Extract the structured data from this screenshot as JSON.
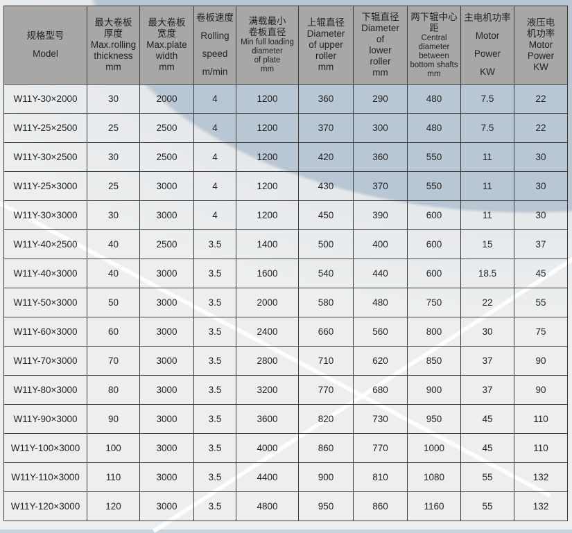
{
  "table": {
    "headers": [
      [
        "规格型号",
        "Model"
      ],
      [
        "最大卷板",
        "厚度",
        "Max.rolling",
        "thickness",
        "mm"
      ],
      [
        "最大卷板",
        "宽度",
        "Max.plate",
        "width",
        "mm"
      ],
      [
        "卷板速度",
        "Rolling",
        "speed",
        "m/min"
      ],
      [
        "满载最小",
        "卷板直径",
        "Min full loading",
        "diameter",
        "of plate",
        "mm"
      ],
      [
        "上辊直径",
        "Diameter",
        "of upper",
        "roller",
        "mm"
      ],
      [
        "下辊直径",
        "Diameter",
        "of",
        "lower",
        "roller",
        "mm"
      ],
      [
        "两下辊中心距",
        "Central",
        "diameter",
        "between",
        "bottom shafts",
        "mm"
      ],
      [
        "主电机功率",
        "Motor",
        "Power",
        "KW"
      ],
      [
        "液压电",
        "机功率",
        "Motor",
        "Power",
        "KW"
      ]
    ],
    "rows": [
      [
        "W11Y-30×2000",
        "30",
        "2000",
        "4",
        "1200",
        "360",
        "290",
        "480",
        "7.5",
        "22"
      ],
      [
        "W11Y-25×2500",
        "25",
        "2500",
        "4",
        "1200",
        "370",
        "300",
        "480",
        "7.5",
        "22"
      ],
      [
        "W11Y-30×2500",
        "30",
        "2500",
        "4",
        "1200",
        "420",
        "360",
        "550",
        "11",
        "30"
      ],
      [
        "W11Y-25×3000",
        "25",
        "3000",
        "4",
        "1200",
        "430",
        "370",
        "550",
        "11",
        "30"
      ],
      [
        "W11Y-30×3000",
        "30",
        "3000",
        "4",
        "1200",
        "450",
        "390",
        "600",
        "11",
        "30"
      ],
      [
        "W11Y-40×2500",
        "40",
        "2500",
        "3.5",
        "1400",
        "500",
        "400",
        "600",
        "15",
        "37"
      ],
      [
        "W11Y-40×3000",
        "40",
        "3000",
        "3.5",
        "1600",
        "540",
        "440",
        "600",
        "18.5",
        "45"
      ],
      [
        "W11Y-50×3000",
        "50",
        "3000",
        "3.5",
        "2000",
        "580",
        "480",
        "750",
        "22",
        "55"
      ],
      [
        "W11Y-60×3000",
        "60",
        "3000",
        "3.5",
        "2400",
        "660",
        "560",
        "800",
        "30",
        "75"
      ],
      [
        "W11Y-70×3000",
        "70",
        "3000",
        "3.5",
        "2800",
        "710",
        "620",
        "850",
        "37",
        "90"
      ],
      [
        "W11Y-80×3000",
        "80",
        "3000",
        "3.5",
        "3200",
        "770",
        "680",
        "900",
        "37",
        "90"
      ],
      [
        "W11Y-90×3000",
        "90",
        "3000",
        "3.5",
        "3600",
        "820",
        "730",
        "950",
        "45",
        "110"
      ],
      [
        "W11Y-100×3000",
        "100",
        "3000",
        "3.5",
        "4000",
        "860",
        "770",
        "1000",
        "45",
        "110"
      ],
      [
        "W11Y-110×3000",
        "110",
        "3000",
        "3.5",
        "4400",
        "900",
        "810",
        "1080",
        "55",
        "132"
      ],
      [
        "W11Y-120×3000",
        "120",
        "3000",
        "3.5",
        "4800",
        "950",
        "860",
        "1160",
        "55",
        "132"
      ]
    ]
  }
}
